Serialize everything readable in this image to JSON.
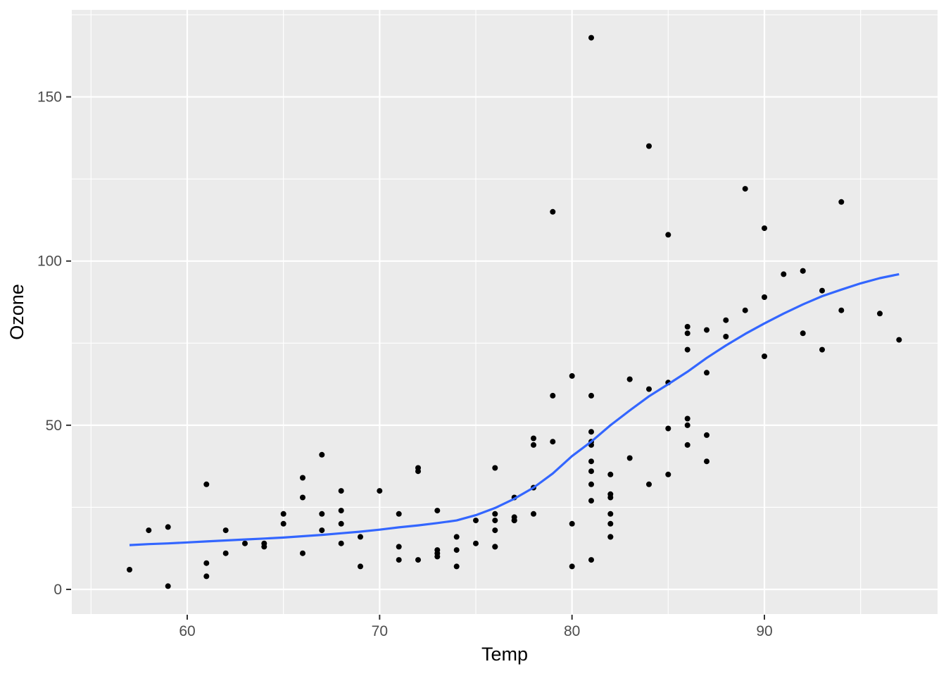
{
  "figure": {
    "background": "#FFFFFF",
    "panel_background": "#EBEBEB",
    "grid_color": "#FFFFFF",
    "axis_text_color": "#4D4D4D",
    "axis_title_color": "#000000",
    "tick_mark_color": "#333333",
    "point_color": "#000000",
    "smooth_color": "#3366FF"
  },
  "chart_data": {
    "type": "scatter",
    "title": "",
    "xlabel": "Temp",
    "ylabel": "Ozone",
    "xlim": [
      54,
      99
    ],
    "ylim": [
      -7.5,
      176.5
    ],
    "x_ticks": [
      60,
      70,
      80,
      90
    ],
    "y_ticks": [
      0,
      50,
      100,
      150
    ],
    "x_minor_ticks": [
      55,
      65,
      75,
      85,
      95
    ],
    "y_minor_ticks": [
      25,
      75,
      125,
      175
    ],
    "grid": true,
    "legend": "none",
    "point_radius": 4,
    "smooth_line_width": 3.2,
    "points": [
      [
        67,
        41
      ],
      [
        72,
        36
      ],
      [
        74,
        12
      ],
      [
        62,
        18
      ],
      [
        66,
        28
      ],
      [
        65,
        23
      ],
      [
        59,
        19
      ],
      [
        61,
        8
      ],
      [
        74,
        7
      ],
      [
        69,
        16
      ],
      [
        66,
        11
      ],
      [
        68,
        14
      ],
      [
        58,
        18
      ],
      [
        64,
        14
      ],
      [
        66,
        34
      ],
      [
        57,
        6
      ],
      [
        68,
        30
      ],
      [
        62,
        11
      ],
      [
        59,
        1
      ],
      [
        73,
        11
      ],
      [
        61,
        4
      ],
      [
        61,
        32
      ],
      [
        67,
        23
      ],
      [
        81,
        45
      ],
      [
        79,
        115
      ],
      [
        76,
        37
      ],
      [
        82,
        29
      ],
      [
        90,
        71
      ],
      [
        87,
        39
      ],
      [
        82,
        23
      ],
      [
        77,
        21
      ],
      [
        72,
        37
      ],
      [
        65,
        20
      ],
      [
        73,
        12
      ],
      [
        76,
        13
      ],
      [
        84,
        135
      ],
      [
        85,
        49
      ],
      [
        81,
        32
      ],
      [
        83,
        64
      ],
      [
        83,
        40
      ],
      [
        88,
        77
      ],
      [
        92,
        97
      ],
      [
        92,
        97
      ],
      [
        89,
        85
      ],
      [
        73,
        10
      ],
      [
        81,
        27
      ],
      [
        80,
        7
      ],
      [
        81,
        48
      ],
      [
        82,
        35
      ],
      [
        84,
        61
      ],
      [
        87,
        79
      ],
      [
        85,
        63
      ],
      [
        74,
        16
      ],
      [
        86,
        80
      ],
      [
        85,
        108
      ],
      [
        82,
        20
      ],
      [
        86,
        52
      ],
      [
        88,
        82
      ],
      [
        86,
        50
      ],
      [
        83,
        64
      ],
      [
        81,
        59
      ],
      [
        81,
        39
      ],
      [
        81,
        9
      ],
      [
        82,
        16
      ],
      [
        86,
        78
      ],
      [
        85,
        35
      ],
      [
        87,
        66
      ],
      [
        89,
        122
      ],
      [
        90,
        89
      ],
      [
        90,
        110
      ],
      [
        86,
        44
      ],
      [
        82,
        28
      ],
      [
        80,
        65
      ],
      [
        77,
        22
      ],
      [
        79,
        59
      ],
      [
        76,
        23
      ],
      [
        78,
        31
      ],
      [
        78,
        44
      ],
      [
        77,
        21
      ],
      [
        72,
        9
      ],
      [
        79,
        45
      ],
      [
        81,
        168
      ],
      [
        86,
        73
      ],
      [
        97,
        76
      ],
      [
        94,
        118
      ],
      [
        96,
        84
      ],
      [
        94,
        85
      ],
      [
        91,
        96
      ],
      [
        92,
        78
      ],
      [
        93,
        73
      ],
      [
        93,
        91
      ],
      [
        87,
        47
      ],
      [
        84,
        32
      ],
      [
        80,
        20
      ],
      [
        78,
        23
      ],
      [
        75,
        21
      ],
      [
        73,
        24
      ],
      [
        81,
        44
      ],
      [
        76,
        21
      ],
      [
        77,
        28
      ],
      [
        71,
        9
      ],
      [
        71,
        13
      ],
      [
        78,
        46
      ],
      [
        67,
        18
      ],
      [
        76,
        13
      ],
      [
        68,
        24
      ],
      [
        82,
        16
      ],
      [
        64,
        13
      ],
      [
        71,
        23
      ],
      [
        81,
        36
      ],
      [
        69,
        7
      ],
      [
        63,
        14
      ],
      [
        70,
        30
      ],
      [
        75,
        14
      ],
      [
        76,
        18
      ],
      [
        68,
        20
      ]
    ],
    "smooth_line": [
      [
        57,
        13.5
      ],
      [
        58,
        13.8
      ],
      [
        59,
        14.0
      ],
      [
        60,
        14.3
      ],
      [
        61,
        14.6
      ],
      [
        62,
        14.9
      ],
      [
        63,
        15.2
      ],
      [
        64,
        15.5
      ],
      [
        65,
        15.8
      ],
      [
        66,
        16.2
      ],
      [
        67,
        16.6
      ],
      [
        68,
        17.1
      ],
      [
        69,
        17.6
      ],
      [
        70,
        18.2
      ],
      [
        71,
        18.9
      ],
      [
        72,
        19.5
      ],
      [
        73,
        20.2
      ],
      [
        74,
        21.0
      ],
      [
        75,
        22.6
      ],
      [
        76,
        24.8
      ],
      [
        77,
        27.6
      ],
      [
        78,
        31.0
      ],
      [
        79,
        35.3
      ],
      [
        80,
        40.6
      ],
      [
        81,
        45.0
      ],
      [
        82,
        50.0
      ],
      [
        83,
        54.5
      ],
      [
        84,
        58.8
      ],
      [
        85,
        62.5
      ],
      [
        86,
        66.3
      ],
      [
        87,
        70.5
      ],
      [
        88,
        74.3
      ],
      [
        89,
        77.8
      ],
      [
        90,
        81.0
      ],
      [
        91,
        84.0
      ],
      [
        92,
        86.8
      ],
      [
        93,
        89.3
      ],
      [
        94,
        91.3
      ],
      [
        95,
        93.2
      ],
      [
        96,
        94.8
      ],
      [
        97,
        96.0
      ]
    ]
  }
}
